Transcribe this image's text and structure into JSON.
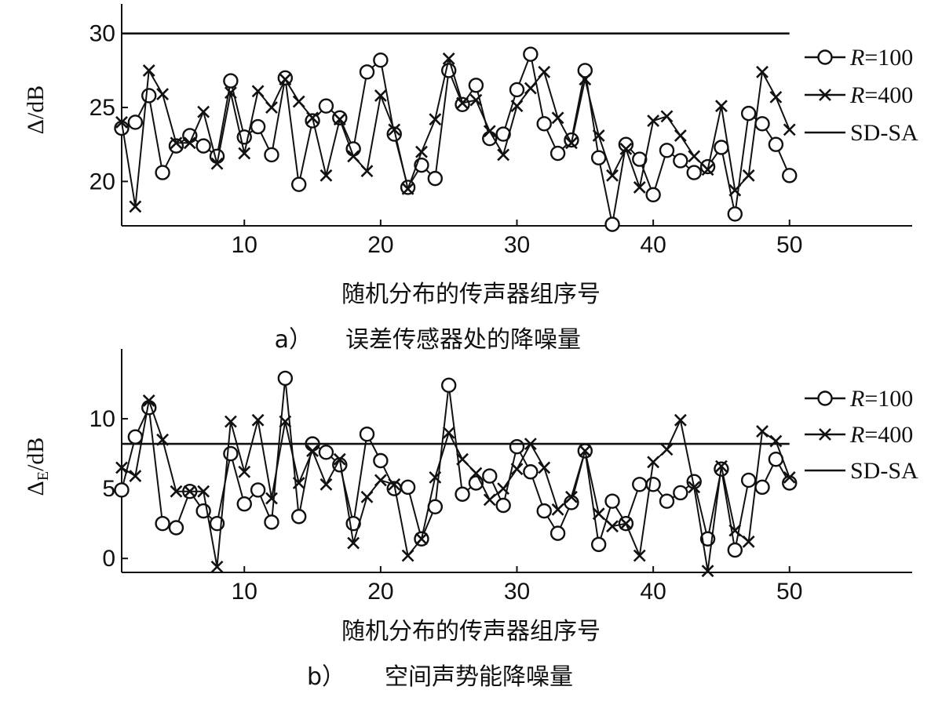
{
  "chart_data": [
    {
      "type": "line",
      "ylabel_symbol": "Δ",
      "ylabel_unit": "/dB",
      "xlabel": "随机分布的传声器组序号",
      "caption_letter": "a）",
      "caption_text": "误差传感器处的降噪量",
      "xlim": [
        1,
        59
      ],
      "ylim": [
        17,
        32
      ],
      "xticks": [
        10,
        20,
        30,
        40,
        50
      ],
      "yticks": [
        20,
        25,
        30
      ],
      "legend": {
        "position": "right",
        "entries": [
          {
            "var": "R",
            "rest": "=100",
            "marker": "circle"
          },
          {
            "var": "R",
            "rest": "=400",
            "marker": "cross"
          },
          {
            "var": "",
            "rest": "SD-SA",
            "marker": "none"
          }
        ]
      },
      "series": [
        {
          "name": "R=100",
          "marker": "circle",
          "x": [
            1,
            2,
            3,
            4,
            5,
            6,
            7,
            8,
            9,
            10,
            11,
            12,
            13,
            14,
            15,
            16,
            17,
            18,
            19,
            20,
            21,
            22,
            23,
            24,
            25,
            26,
            27,
            28,
            29,
            30,
            31,
            32,
            33,
            34,
            35,
            36,
            37,
            38,
            39,
            40,
            41,
            42,
            43,
            44,
            45,
            46,
            47,
            48,
            49,
            50
          ],
          "values": [
            23.6,
            24.0,
            25.8,
            20.6,
            22.4,
            23.1,
            22.4,
            21.7,
            26.8,
            23.0,
            23.7,
            21.8,
            27.0,
            19.8,
            24.1,
            25.1,
            24.3,
            22.2,
            27.4,
            28.2,
            23.2,
            19.6,
            21.1,
            20.2,
            27.5,
            25.2,
            26.5,
            22.9,
            23.2,
            26.2,
            28.6,
            23.9,
            21.9,
            22.8,
            27.5,
            21.6,
            17.1,
            22.5,
            21.5,
            19.1,
            22.1,
            21.4,
            20.6,
            21.0,
            22.3,
            17.8,
            24.6,
            23.9,
            22.5,
            20.4
          ]
        },
        {
          "name": "R=400",
          "marker": "cross",
          "x": [
            1,
            2,
            3,
            4,
            5,
            6,
            7,
            8,
            9,
            10,
            11,
            12,
            13,
            14,
            15,
            16,
            17,
            18,
            19,
            20,
            21,
            22,
            23,
            24,
            25,
            26,
            27,
            28,
            29,
            30,
            31,
            32,
            33,
            34,
            35,
            36,
            37,
            38,
            39,
            40,
            41,
            42,
            43,
            44,
            45,
            46,
            47,
            48,
            49,
            50
          ],
          "values": [
            24.0,
            18.3,
            27.5,
            25.9,
            22.6,
            22.6,
            24.7,
            21.2,
            26.0,
            21.9,
            26.1,
            25.0,
            26.9,
            25.4,
            24.3,
            20.4,
            24.2,
            21.7,
            20.7,
            25.8,
            23.5,
            19.5,
            22.0,
            24.2,
            28.3,
            25.3,
            25.5,
            23.4,
            21.8,
            25.1,
            26.3,
            27.4,
            24.3,
            22.6,
            26.9,
            23.1,
            20.4,
            22.2,
            19.6,
            24.1,
            24.4,
            23.1,
            21.7,
            20.8,
            25.1,
            19.4,
            20.4,
            27.4,
            25.7,
            23.5
          ]
        },
        {
          "name": "SD-SA",
          "marker": "none",
          "x": [
            1,
            50
          ],
          "values": [
            30,
            30
          ]
        }
      ]
    },
    {
      "type": "line",
      "ylabel_symbol": "Δ",
      "ylabel_sub": "E",
      "ylabel_unit": "/dB",
      "xlabel": "随机分布的传声器组序号",
      "caption_letter": "b）",
      "caption_text": "空间声势能降噪量",
      "xlim": [
        1,
        59
      ],
      "ylim": [
        -1,
        15
      ],
      "xticks": [
        10,
        20,
        30,
        40,
        50
      ],
      "yticks": [
        0,
        5,
        10
      ],
      "legend": {
        "position": "right",
        "entries": [
          {
            "var": "R",
            "rest": "=100",
            "marker": "circle"
          },
          {
            "var": "R",
            "rest": "=400",
            "marker": "cross"
          },
          {
            "var": "",
            "rest": "SD-SA",
            "marker": "none"
          }
        ]
      },
      "series": [
        {
          "name": "R=100",
          "marker": "circle",
          "x": [
            1,
            2,
            3,
            4,
            5,
            6,
            7,
            8,
            9,
            10,
            11,
            12,
            13,
            14,
            15,
            16,
            17,
            18,
            19,
            20,
            21,
            22,
            23,
            24,
            25,
            26,
            27,
            28,
            29,
            30,
            31,
            32,
            33,
            34,
            35,
            36,
            37,
            38,
            39,
            40,
            41,
            42,
            43,
            44,
            45,
            46,
            47,
            48,
            49,
            50
          ],
          "values": [
            4.9,
            8.7,
            10.8,
            2.5,
            2.2,
            4.8,
            3.4,
            2.5,
            7.5,
            3.9,
            4.9,
            2.6,
            12.9,
            3.0,
            8.2,
            7.6,
            6.7,
            2.5,
            8.9,
            7.0,
            5.0,
            5.1,
            1.4,
            3.7,
            12.4,
            4.6,
            5.4,
            5.9,
            3.8,
            8.0,
            6.2,
            3.4,
            1.8,
            4.0,
            7.7,
            1.0,
            4.1,
            2.5,
            5.3,
            5.3,
            4.1,
            4.7,
            5.5,
            1.4,
            6.4,
            0.6,
            5.6,
            5.1,
            7.1,
            5.4
          ]
        },
        {
          "name": "R=400",
          "marker": "cross",
          "x": [
            1,
            2,
            3,
            4,
            5,
            6,
            7,
            8,
            9,
            10,
            11,
            12,
            13,
            14,
            15,
            16,
            17,
            18,
            19,
            20,
            21,
            22,
            23,
            24,
            25,
            26,
            27,
            28,
            29,
            30,
            31,
            32,
            33,
            34,
            35,
            36,
            37,
            38,
            39,
            40,
            41,
            42,
            43,
            44,
            45,
            46,
            47,
            48,
            49,
            50
          ],
          "values": [
            6.5,
            5.9,
            11.3,
            8.5,
            4.8,
            4.8,
            4.8,
            -0.6,
            9.8,
            6.2,
            9.9,
            4.3,
            9.8,
            5.4,
            7.7,
            5.3,
            7.1,
            1.1,
            4.4,
            5.6,
            5.3,
            0.2,
            1.4,
            5.8,
            9.0,
            7.1,
            6.1,
            4.2,
            5.0,
            6.4,
            8.2,
            6.5,
            3.5,
            4.4,
            7.7,
            3.2,
            2.3,
            2.5,
            0.2,
            6.9,
            7.8,
            9.9,
            5.1,
            -0.9,
            6.6,
            2.0,
            1.2,
            9.1,
            8.4,
            5.8
          ]
        },
        {
          "name": "SD-SA",
          "marker": "none",
          "x": [
            1,
            50
          ],
          "values": [
            8.2,
            8.2
          ]
        }
      ]
    }
  ]
}
